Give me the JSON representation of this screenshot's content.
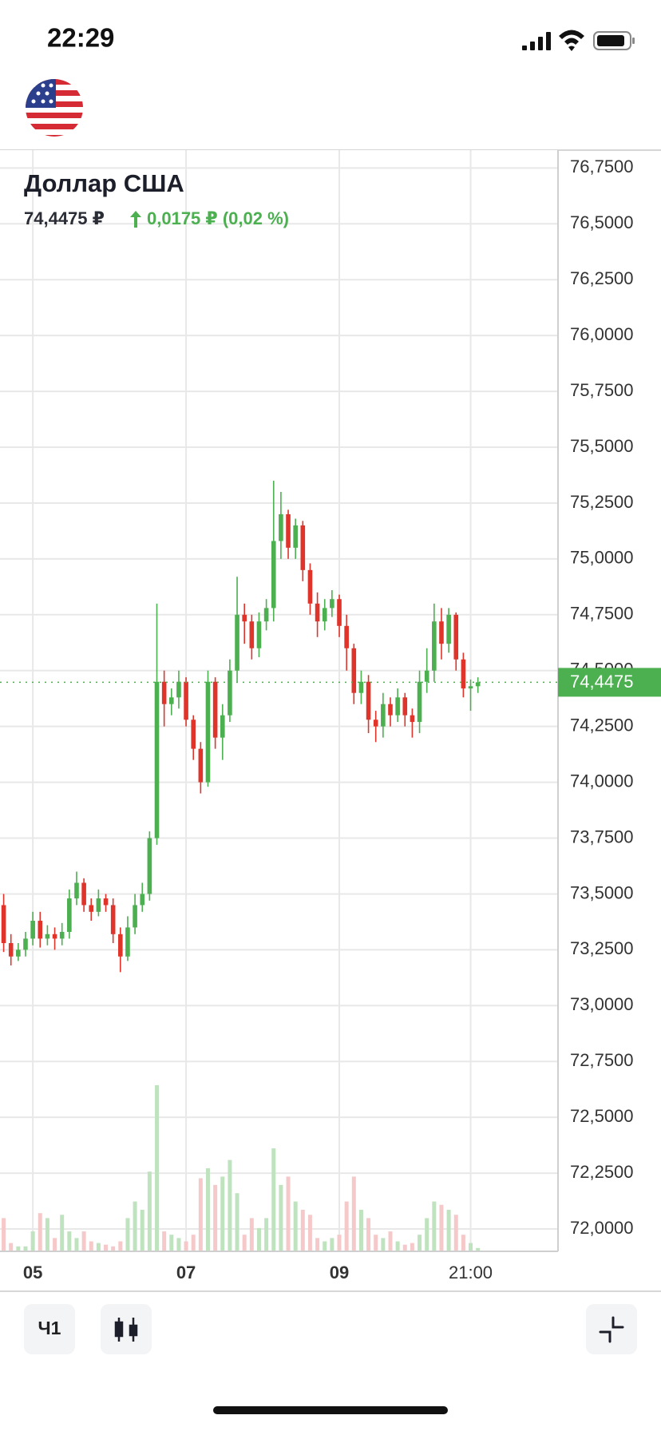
{
  "status_bar": {
    "time": "22:29"
  },
  "header": {
    "title": "Доллар США",
    "price": "74,4475 ₽",
    "change": "0,0175 ₽ (0,02 %)"
  },
  "chart_data": {
    "type": "candlestick",
    "categories": [
      null,
      null,
      null,
      null,
      "05",
      null,
      null,
      null,
      null,
      null,
      null,
      null,
      null,
      null,
      null,
      null,
      null,
      null,
      null,
      null,
      null,
      null,
      null,
      null,
      null,
      "07",
      null,
      null,
      null,
      null,
      null,
      null,
      null,
      null,
      null,
      null,
      null,
      null,
      null,
      null,
      null,
      null,
      null,
      null,
      null,
      null,
      "09",
      null,
      null,
      null,
      null,
      null,
      null,
      null,
      null,
      null,
      null,
      null,
      null,
      null,
      null,
      null,
      null,
      null,
      "21:00",
      null
    ],
    "open": [
      73.45,
      73.28,
      73.22,
      73.25,
      73.3,
      73.38,
      73.3,
      73.32,
      73.3,
      73.33,
      73.48,
      73.55,
      73.45,
      73.42,
      73.48,
      73.45,
      73.32,
      73.22,
      73.35,
      73.45,
      73.5,
      73.75,
      74.45,
      74.35,
      74.38,
      74.45,
      74.28,
      74.15,
      74.0,
      74.45,
      74.2,
      74.3,
      74.5,
      74.75,
      74.72,
      74.6,
      74.72,
      74.78,
      75.08,
      75.2,
      75.05,
      75.15,
      74.95,
      74.8,
      74.72,
      74.78,
      74.82,
      74.7,
      74.6,
      74.4,
      74.45,
      74.28,
      74.25,
      74.35,
      74.3,
      74.38,
      74.3,
      74.27,
      74.45,
      74.5,
      74.72,
      74.62,
      74.75,
      74.55,
      74.42,
      74.43
    ],
    "high": [
      73.5,
      73.32,
      73.28,
      73.33,
      73.42,
      73.42,
      73.36,
      73.35,
      73.37,
      73.52,
      73.6,
      73.57,
      73.48,
      73.52,
      73.5,
      73.48,
      73.35,
      73.4,
      73.5,
      73.55,
      73.78,
      74.8,
      74.5,
      74.42,
      74.5,
      74.47,
      74.3,
      74.18,
      74.5,
      74.47,
      74.35,
      74.55,
      74.92,
      74.8,
      74.75,
      74.76,
      74.82,
      75.35,
      75.3,
      75.22,
      75.18,
      75.17,
      74.98,
      74.85,
      74.82,
      74.86,
      74.84,
      74.75,
      74.62,
      74.5,
      74.48,
      74.32,
      74.4,
      74.38,
      74.42,
      74.4,
      74.33,
      74.5,
      74.6,
      74.8,
      74.78,
      74.78,
      74.76,
      74.58,
      74.46,
      74.47
    ],
    "low": [
      73.24,
      73.18,
      73.2,
      73.22,
      73.27,
      73.26,
      73.27,
      73.25,
      73.27,
      73.3,
      73.45,
      73.42,
      73.38,
      73.4,
      73.42,
      73.28,
      73.15,
      73.2,
      73.32,
      73.42,
      73.47,
      73.72,
      74.25,
      74.3,
      74.33,
      74.25,
      74.1,
      73.95,
      73.98,
      74.15,
      74.1,
      74.27,
      74.45,
      74.62,
      74.55,
      74.56,
      74.68,
      74.72,
      75.0,
      75.0,
      75.0,
      74.9,
      74.75,
      74.65,
      74.68,
      74.74,
      74.65,
      74.5,
      74.35,
      74.35,
      74.22,
      74.18,
      74.2,
      74.25,
      74.27,
      74.25,
      74.2,
      74.22,
      74.4,
      74.45,
      74.55,
      74.58,
      74.5,
      74.38,
      74.32,
      74.4
    ],
    "close": [
      73.28,
      73.22,
      73.25,
      73.3,
      73.38,
      73.3,
      73.32,
      73.3,
      73.33,
      73.48,
      73.55,
      73.45,
      73.42,
      73.48,
      73.45,
      73.32,
      73.22,
      73.35,
      73.45,
      73.5,
      73.75,
      74.45,
      74.35,
      74.38,
      74.45,
      74.28,
      74.15,
      74.0,
      74.45,
      74.2,
      74.3,
      74.5,
      74.75,
      74.72,
      74.6,
      74.72,
      74.78,
      75.08,
      75.2,
      75.05,
      75.15,
      74.95,
      74.8,
      74.72,
      74.78,
      74.82,
      74.7,
      74.6,
      74.4,
      74.45,
      74.28,
      74.25,
      74.35,
      74.3,
      74.38,
      74.3,
      74.27,
      74.45,
      74.5,
      74.72,
      74.62,
      74.75,
      74.55,
      74.42,
      74.43,
      74.4475
    ],
    "volume": [
      20,
      5,
      3,
      3,
      12,
      23,
      20,
      8,
      22,
      12,
      8,
      12,
      6,
      5,
      4,
      3,
      6,
      20,
      30,
      25,
      48,
      100,
      12,
      10,
      8,
      6,
      10,
      44,
      50,
      40,
      45,
      55,
      35,
      10,
      20,
      14,
      20,
      62,
      40,
      45,
      30,
      25,
      22,
      8,
      6,
      8,
      10,
      30,
      45,
      25,
      20,
      10,
      8,
      12,
      6,
      4,
      5,
      10,
      20,
      30,
      28,
      25,
      22,
      10,
      5,
      2
    ],
    "up_color": "#4caf50",
    "down_color": "#e0342b",
    "up_volume_color": "#bfe3bf",
    "down_volume_color": "#f5c9c9",
    "ylim": [
      71.9,
      76.83
    ],
    "yticks": [
      {
        "value": 72,
        "label": "72,0000"
      },
      {
        "value": 72.25,
        "label": "72,2500"
      },
      {
        "value": 72.5,
        "label": "72,5000"
      },
      {
        "value": 72.75,
        "label": "72,7500"
      },
      {
        "value": 73,
        "label": "73,0000"
      },
      {
        "value": 73.25,
        "label": "73,2500"
      },
      {
        "value": 73.5,
        "label": "73,5000"
      },
      {
        "value": 73.75,
        "label": "73,7500"
      },
      {
        "value": 74,
        "label": "74,0000"
      },
      {
        "value": 74.25,
        "label": "74,2500"
      },
      {
        "value": 74.5,
        "label": "74,5000"
      },
      {
        "value": 74.75,
        "label": "74,7500"
      },
      {
        "value": 75,
        "label": "75,0000"
      },
      {
        "value": 75.25,
        "label": "75,2500"
      },
      {
        "value": 75.5,
        "label": "75,5000"
      },
      {
        "value": 75.75,
        "label": "75,7500"
      },
      {
        "value": 76,
        "label": "76,0000"
      },
      {
        "value": 76.25,
        "label": "76,2500"
      },
      {
        "value": 76.5,
        "label": "76,5000"
      },
      {
        "value": 76.75,
        "label": "76,7500"
      }
    ],
    "last_price": 74.4475,
    "last_price_label": "74,4475",
    "grid": true
  },
  "toolbar": {
    "interval": "Ч1"
  }
}
